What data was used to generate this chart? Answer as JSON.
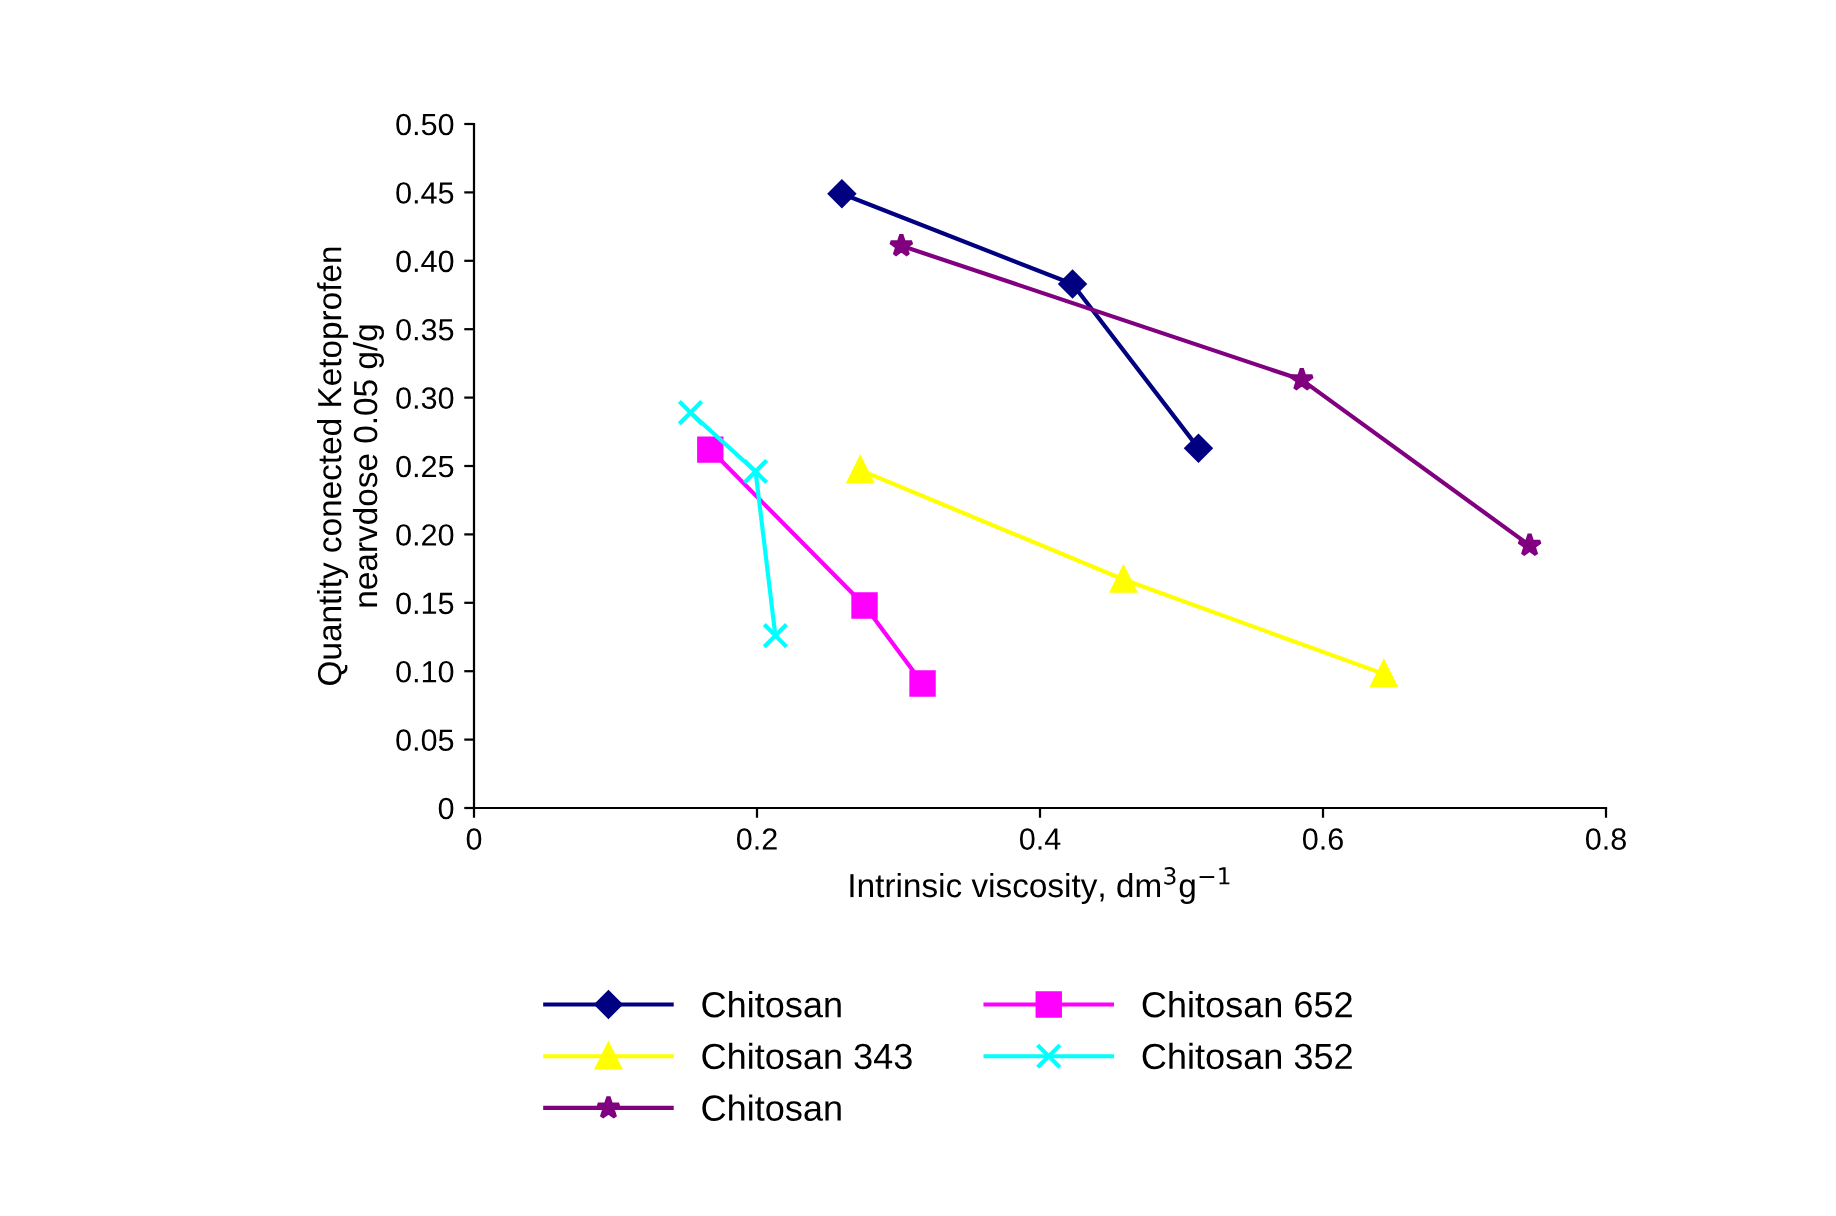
{
  "chart_data": {
    "type": "line",
    "xlabel": "Intrinsic viscosity, dm$^{3}$g$^{−1}$",
    "ylabel": "Quantity conected Ketoprofen\nnearvdose 0.05 g/g",
    "xlim": [
      0,
      0.8
    ],
    "xticks": [
      0,
      0.2,
      0.4,
      0.6,
      0.8
    ],
    "ylim": [
      0,
      0.5
    ],
    "yticks": [
      0,
      {
        "value": 0.05,
        "label": "0.05"
      },
      {
        "value": 0.1,
        "label": "0.10"
      },
      {
        "value": 0.15,
        "label": "0.15"
      },
      {
        "value": 0.2,
        "label": "0.20"
      },
      {
        "value": 0.25,
        "label": "0.25"
      },
      {
        "value": 0.3,
        "label": "0.30"
      },
      {
        "value": 0.35,
        "label": "0.35"
      },
      {
        "value": 0.4,
        "label": "0.40"
      },
      {
        "value": 0.45,
        "label": "0.45"
      },
      {
        "value": 0.5,
        "label": "0.50"
      }
    ],
    "grid": false,
    "legend": "bottom",
    "line_style": "solid",
    "series": [
      {
        "name": "Chitosan",
        "color": "#000080",
        "marker": "diamond",
        "x": [
          0.26,
          0.423,
          0.512
        ],
        "values": [
          0.449,
          0.383,
          0.263
        ]
      },
      {
        "name": "Chitosan 652",
        "color": "#ff00ff",
        "marker": "square",
        "x": [
          0.167,
          0.276,
          0.317
        ],
        "values": [
          0.262,
          0.148,
          0.091
        ]
      },
      {
        "name": "Chitosan 343",
        "color": "#ffff00",
        "marker": "triangle",
        "x": [
          0.273,
          0.459,
          0.643
        ],
        "values": [
          0.247,
          0.167,
          0.098
        ]
      },
      {
        "name": "Chitosan 352",
        "color": "#00ffff",
        "marker": "cross",
        "x": [
          0.153,
          0.199,
          0.213
        ],
        "values": [
          0.289,
          0.246,
          0.126
        ]
      },
      {
        "name": "Chitosan",
        "color": "#800080",
        "marker": "star",
        "x": [
          0.302,
          0.585,
          0.746
        ],
        "values": [
          0.411,
          0.313,
          0.192
        ]
      }
    ]
  }
}
